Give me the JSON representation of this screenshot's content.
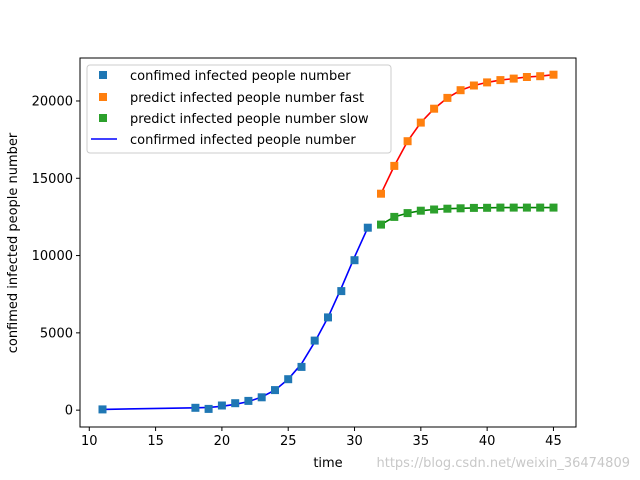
{
  "chart_data": {
    "type": "line",
    "xlabel": "time",
    "ylabel": "confimed infected people number",
    "xlim": [
      9.3,
      46.7
    ],
    "ylim": [
      -1090,
      22780
    ],
    "xticks": [
      10,
      15,
      20,
      25,
      30,
      35,
      40,
      45
    ],
    "yticks": [
      0,
      5000,
      10000,
      15000,
      20000
    ],
    "legend_position": "top-left",
    "series": [
      {
        "name": "confimed infected people number",
        "kind": "markers",
        "color": "#1f77b4",
        "x": [
          11,
          18,
          19,
          20,
          21,
          22,
          23,
          24,
          25,
          26,
          27,
          28,
          29,
          30,
          31
        ],
        "y": [
          50,
          150,
          80,
          300,
          450,
          600,
          830,
          1300,
          2000,
          2800,
          4500,
          6000,
          7700,
          9700,
          11800
        ]
      },
      {
        "name": "predict infected people number fast",
        "kind": "markers",
        "color": "#ff7f0e",
        "x": [
          32,
          33,
          34,
          35,
          36,
          37,
          38,
          39,
          40,
          41,
          42,
          43,
          44,
          45
        ],
        "y": [
          14000,
          15800,
          17400,
          18600,
          19500,
          20200,
          20700,
          21000,
          21200,
          21350,
          21450,
          21550,
          21600,
          21700
        ]
      },
      {
        "name": "predict infected people number slow",
        "kind": "markers",
        "color": "#2ca02c",
        "x": [
          32,
          33,
          34,
          35,
          36,
          37,
          38,
          39,
          40,
          41,
          42,
          43,
          44,
          45
        ],
        "y": [
          12000,
          12500,
          12750,
          12900,
          12980,
          13030,
          13060,
          13080,
          13090,
          13100,
          13100,
          13100,
          13100,
          13100
        ]
      },
      {
        "name": "confirmed infected people number",
        "kind": "line",
        "color": "#0000ff",
        "x": [
          11,
          18,
          19,
          20,
          21,
          22,
          23,
          24,
          25,
          26,
          27,
          28,
          29,
          30,
          31
        ],
        "y": [
          50,
          150,
          180,
          250,
          380,
          550,
          850,
          1300,
          2000,
          3000,
          4400,
          6000,
          7900,
          9900,
          11800
        ]
      },
      {
        "name": "",
        "kind": "line",
        "color": "#ff0000",
        "x": [
          32,
          33,
          34,
          35,
          36,
          37,
          38,
          39,
          40,
          41,
          42,
          43,
          44,
          45
        ],
        "y": [
          14000,
          15800,
          17400,
          18600,
          19500,
          20200,
          20700,
          21000,
          21200,
          21350,
          21450,
          21550,
          21600,
          21700
        ]
      },
      {
        "name": "",
        "kind": "line",
        "color": "#008000",
        "x": [
          32,
          33,
          34,
          35,
          36,
          37,
          38,
          39,
          40,
          41,
          42,
          43,
          44,
          45
        ],
        "y": [
          12000,
          12500,
          12750,
          12900,
          12980,
          13030,
          13060,
          13080,
          13090,
          13100,
          13100,
          13100,
          13100,
          13100
        ]
      }
    ],
    "legend": [
      "confimed infected people number",
      "predict infected people number fast",
      "predict infected people number slow",
      "confirmed infected people number"
    ]
  },
  "watermark": "https://blog.csdn.net/weixin_36474809"
}
